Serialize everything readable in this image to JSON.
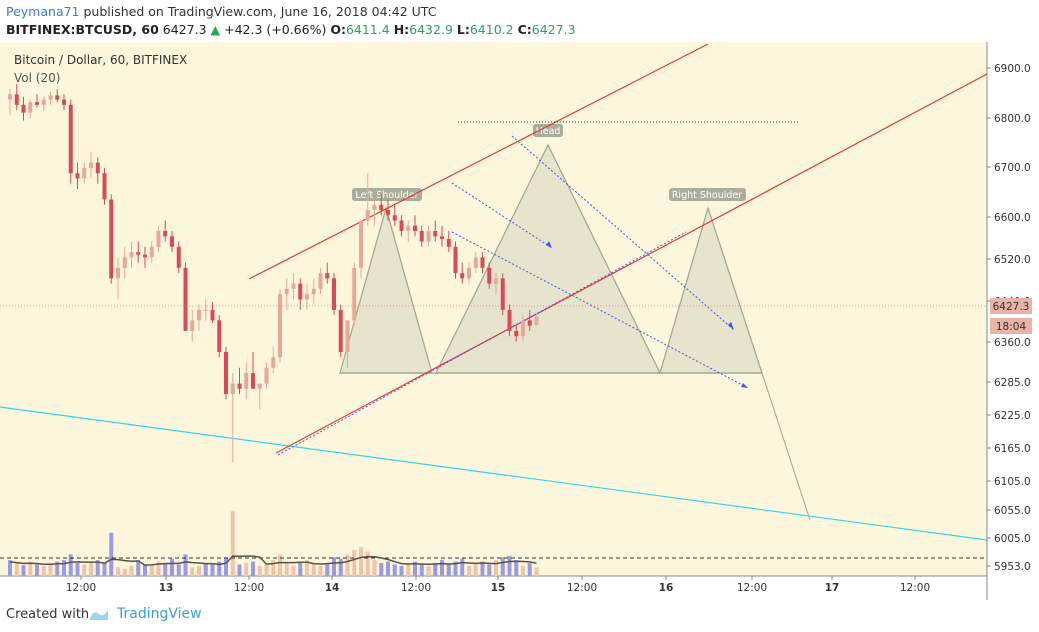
{
  "header": {
    "author": "Peymana71",
    "published_text": "published on TradingView.com, June 16, 2018 04:42 UTC",
    "symbol": "BITFINEX:BTCUSD, 60",
    "last": "6427.3",
    "change_arrow": "▲",
    "change": "+42.3 (+0.66%)",
    "o_label": "O:",
    "o": "6411.4",
    "h_label": "H:",
    "h": "6432.9",
    "l_label": "L:",
    "l": "6410.2",
    "c_label": "C:",
    "c": "6427.3"
  },
  "legend": {
    "title": "Bitcoin / Dollar, 60, BITFINEX",
    "volume": "Vol (20)"
  },
  "annotations": {
    "left_shoulder": "Left Shoulder",
    "head": "Head",
    "right_shoulder": "Right Shoulder"
  },
  "price_badge": "6427.3",
  "time_badge": "18:04",
  "colors": {
    "up": "#e8a898",
    "down": "#d94a59",
    "vol_up": "#f2c3a9",
    "vol_down": "#9a9ae8",
    "background": "#fbf6dc",
    "channel": "#e53935",
    "trend": "#33d6e6",
    "pattern": "#9ea58f"
  },
  "chart_data": {
    "type": "candlestick",
    "title": "Bitcoin / Dollar, 60, BITFINEX",
    "y_ticks": [
      "6900.0",
      "6800.0",
      "6700.0",
      "6600.0",
      "6520.0",
      "6440.0",
      "6360.0",
      "6285.0",
      "6225.0",
      "6165.0",
      "6105.0",
      "6055.0",
      "6005.0",
      "5953.0"
    ],
    "x_ticks": [
      "12:00",
      "13",
      "12:00",
      "14",
      "12:00",
      "15",
      "12:00",
      "16",
      "12:00",
      "17",
      "12:00"
    ],
    "last_price": 6427.3,
    "ohlc_hourly": [
      [
        6840,
        6860,
        6810,
        6850
      ],
      [
        6850,
        6870,
        6820,
        6830
      ],
      [
        6830,
        6845,
        6800,
        6815
      ],
      [
        6815,
        6840,
        6805,
        6835
      ],
      [
        6835,
        6850,
        6825,
        6830
      ],
      [
        6830,
        6845,
        6818,
        6840
      ],
      [
        6840,
        6855,
        6830,
        6848
      ],
      [
        6848,
        6860,
        6835,
        6840
      ],
      [
        6840,
        6850,
        6820,
        6830
      ],
      [
        6830,
        6840,
        6680,
        6700
      ],
      [
        6700,
        6720,
        6670,
        6690
      ],
      [
        6690,
        6720,
        6680,
        6710
      ],
      [
        6710,
        6740,
        6690,
        6720
      ],
      [
        6720,
        6730,
        6680,
        6700
      ],
      [
        6700,
        6710,
        6640,
        6650
      ],
      [
        6650,
        6660,
        6490,
        6500
      ],
      [
        6500,
        6540,
        6460,
        6520
      ],
      [
        6520,
        6560,
        6500,
        6540
      ],
      [
        6540,
        6570,
        6520,
        6550
      ],
      [
        6550,
        6570,
        6530,
        6545
      ],
      [
        6545,
        6560,
        6520,
        6540
      ],
      [
        6540,
        6570,
        6530,
        6560
      ],
      [
        6560,
        6600,
        6550,
        6590
      ],
      [
        6590,
        6610,
        6570,
        6580
      ],
      [
        6580,
        6590,
        6550,
        6560
      ],
      [
        6560,
        6570,
        6510,
        6520
      ],
      [
        6520,
        6530,
        6420,
        6400
      ],
      [
        6400,
        6440,
        6380,
        6420
      ],
      [
        6420,
        6450,
        6400,
        6440
      ],
      [
        6440,
        6460,
        6420,
        6440
      ],
      [
        6440,
        6455,
        6415,
        6420
      ],
      [
        6420,
        6430,
        6350,
        6360
      ],
      [
        6360,
        6370,
        6270,
        6280
      ],
      [
        6280,
        6320,
        6150,
        6300
      ],
      [
        6300,
        6330,
        6280,
        6290
      ],
      [
        6290,
        6340,
        6270,
        6320
      ],
      [
        6320,
        6360,
        6300,
        6290
      ],
      [
        6290,
        6300,
        6250,
        6300
      ],
      [
        6300,
        6340,
        6290,
        6330
      ],
      [
        6330,
        6370,
        6320,
        6350
      ],
      [
        6350,
        6480,
        6340,
        6470
      ],
      [
        6470,
        6500,
        6440,
        6480
      ],
      [
        6480,
        6510,
        6460,
        6490
      ],
      [
        6490,
        6500,
        6440,
        6460
      ],
      [
        6460,
        6490,
        6440,
        6470
      ],
      [
        6470,
        6500,
        6450,
        6480
      ],
      [
        6480,
        6520,
        6470,
        6510
      ],
      [
        6510,
        6530,
        6490,
        6500
      ],
      [
        6500,
        6510,
        6430,
        6440
      ],
      [
        6440,
        6450,
        6350,
        6360
      ],
      [
        6360,
        6420,
        6330,
        6420
      ],
      [
        6420,
        6530,
        6410,
        6520
      ],
      [
        6520,
        6600,
        6500,
        6610
      ],
      [
        6610,
        6700,
        6600,
        6630
      ],
      [
        6630,
        6650,
        6600,
        6640
      ],
      [
        6640,
        6660,
        6620,
        6630
      ],
      [
        6630,
        6650,
        6610,
        6620
      ],
      [
        6620,
        6640,
        6600,
        6610
      ],
      [
        6610,
        6620,
        6580,
        6590
      ],
      [
        6590,
        6610,
        6570,
        6600
      ],
      [
        6600,
        6620,
        6580,
        6590
      ],
      [
        6590,
        6600,
        6560,
        6570
      ],
      [
        6570,
        6600,
        6560,
        6590
      ],
      [
        6590,
        6610,
        6570,
        6580
      ],
      [
        6580,
        6600,
        6560,
        6575
      ],
      [
        6575,
        6590,
        6550,
        6560
      ],
      [
        6560,
        6570,
        6500,
        6510
      ],
      [
        6510,
        6530,
        6490,
        6500
      ],
      [
        6500,
        6530,
        6490,
        6520
      ],
      [
        6520,
        6550,
        6510,
        6540
      ],
      [
        6540,
        6550,
        6510,
        6520
      ],
      [
        6520,
        6530,
        6480,
        6490
      ],
      [
        6490,
        6510,
        6470,
        6500
      ],
      [
        6500,
        6510,
        6430,
        6440
      ],
      [
        6440,
        6450,
        6390,
        6400
      ],
      [
        6400,
        6410,
        6380,
        6390
      ],
      [
        6390,
        6430,
        6380,
        6420
      ],
      [
        6420,
        6440,
        6400,
        6410
      ],
      [
        6411.4,
        6432.9,
        6410.2,
        6427.3
      ]
    ],
    "volume": [
      22,
      18,
      15,
      20,
      16,
      14,
      18,
      20,
      22,
      30,
      18,
      16,
      20,
      22,
      18,
      60,
      12,
      10,
      14,
      22,
      16,
      14,
      20,
      18,
      24,
      16,
      30,
      12,
      14,
      18,
      16,
      20,
      26,
      90,
      16,
      18,
      20,
      14,
      16,
      22,
      30,
      18,
      14,
      20,
      22,
      16,
      14,
      18,
      26,
      24,
      30,
      36,
      40,
      34,
      22,
      18,
      20,
      16,
      14,
      18,
      20,
      16,
      14,
      18,
      22,
      16,
      20,
      24,
      14,
      18,
      20,
      16,
      22,
      26,
      28,
      22,
      14,
      18,
      12
    ],
    "volume_up": [
      false,
      true,
      false,
      true,
      false,
      true,
      true,
      false,
      false,
      false,
      false,
      true,
      true,
      false,
      false,
      false,
      true,
      true,
      true,
      false,
      false,
      true,
      true,
      false,
      false,
      false,
      false,
      true,
      true,
      false,
      false,
      false,
      false,
      true,
      false,
      true,
      false,
      true,
      true,
      true,
      true,
      true,
      true,
      false,
      true,
      true,
      true,
      false,
      false,
      false,
      true,
      true,
      true,
      true,
      true,
      false,
      false,
      false,
      false,
      true,
      false,
      false,
      true,
      false,
      false,
      false,
      false,
      false,
      true,
      true,
      false,
      false,
      true,
      false,
      false,
      false,
      true,
      false,
      true
    ]
  }
}
